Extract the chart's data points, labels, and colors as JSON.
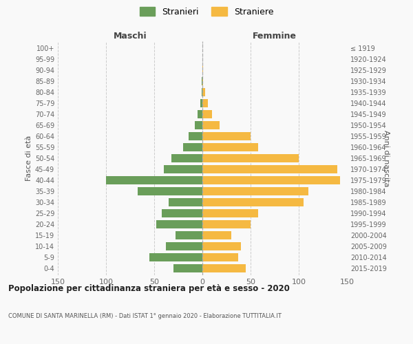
{
  "age_groups_bottom_to_top": [
    "0-4",
    "5-9",
    "10-14",
    "15-19",
    "20-24",
    "25-29",
    "30-34",
    "35-39",
    "40-44",
    "45-49",
    "50-54",
    "55-59",
    "60-64",
    "65-69",
    "70-74",
    "75-79",
    "80-84",
    "85-89",
    "90-94",
    "95-99",
    "100+"
  ],
  "birth_years_bottom_to_top": [
    "2015-2019",
    "2010-2014",
    "2005-2009",
    "2000-2004",
    "1995-1999",
    "1990-1994",
    "1985-1989",
    "1980-1984",
    "1975-1979",
    "1970-1974",
    "1965-1969",
    "1960-1964",
    "1955-1959",
    "1950-1954",
    "1945-1949",
    "1940-1944",
    "1935-1939",
    "1930-1934",
    "1925-1929",
    "1920-1924",
    "≤ 1919"
  ],
  "males_bottom_to_top": [
    30,
    55,
    38,
    28,
    48,
    42,
    35,
    67,
    100,
    40,
    32,
    20,
    14,
    8,
    5,
    2,
    1,
    1,
    0,
    0,
    0
  ],
  "females_bottom_to_top": [
    45,
    37,
    40,
    30,
    50,
    58,
    105,
    110,
    143,
    140,
    100,
    58,
    50,
    18,
    10,
    6,
    3,
    1,
    1,
    0,
    0
  ],
  "male_color": "#6a9e5a",
  "female_color": "#f5b942",
  "background_color": "#f9f9f9",
  "grid_color": "#cccccc",
  "title": "Popolazione per cittadinanza straniera per età e sesso - 2020",
  "subtitle": "COMUNE DI SANTA MARINELLA (RM) - Dati ISTAT 1° gennaio 2020 - Elaborazione TUTTITALIA.IT",
  "xlabel_left": "Maschi",
  "xlabel_right": "Femmine",
  "ylabel_left": "Fasce di età",
  "ylabel_right": "Anni di nascita",
  "legend_male": "Stranieri",
  "legend_female": "Straniere",
  "xlim": 150,
  "bar_height": 0.75
}
